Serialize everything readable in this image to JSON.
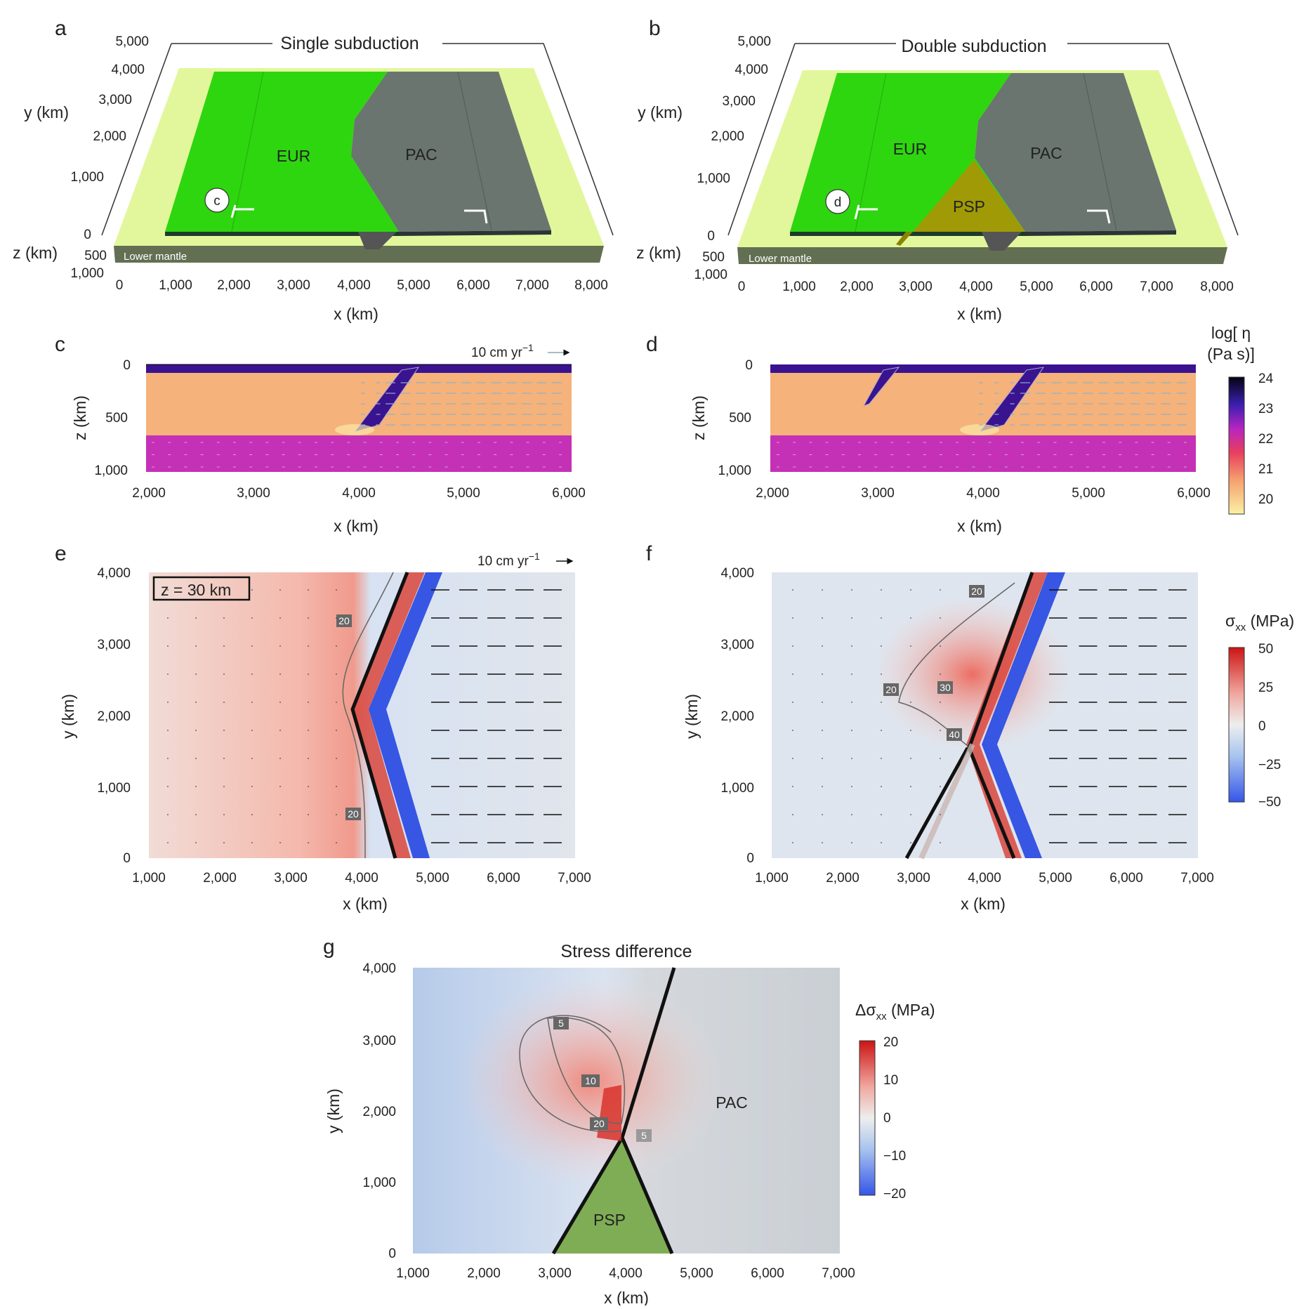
{
  "panels": {
    "a": {
      "letter": "a",
      "title": "Single subduction",
      "ylabel": "y (km)",
      "zlabel": "z (km)",
      "xlabel": "x (km)",
      "yticks": [
        "5,000",
        "4,000",
        "3,000",
        "2,000",
        "1,000",
        "0"
      ],
      "zticks": [
        "500",
        "1,000"
      ],
      "xticks": [
        "0",
        "1,000",
        "2,000",
        "3,000",
        "4,000",
        "5,000",
        "6,000",
        "7,000",
        "8,000"
      ],
      "plates": [
        "EUR",
        "PAC"
      ],
      "section_marker": "c",
      "lower": "Lower mantle"
    },
    "b": {
      "letter": "b",
      "title": "Double subduction",
      "ylabel": "y (km)",
      "zlabel": "z (km)",
      "xlabel": "x (km)",
      "yticks": [
        "5,000",
        "4,000",
        "3,000",
        "2,000",
        "1,000",
        "0"
      ],
      "zticks": [
        "500",
        "1,000"
      ],
      "xticks": [
        "0",
        "1,000",
        "2,000",
        "3,000",
        "4,000",
        "5,000",
        "6,000",
        "7,000",
        "8,000"
      ],
      "plates": [
        "EUR",
        "PAC",
        "PSP"
      ],
      "section_marker": "d",
      "lower": "Lower mantle"
    },
    "c": {
      "letter": "c",
      "ylabel": "z (km)",
      "xlabel": "x (km)",
      "yticks": [
        "0",
        "500",
        "1,000"
      ],
      "xticks": [
        "2,000",
        "3,000",
        "4,000",
        "5,000",
        "6,000"
      ],
      "scale": "10 cm yr",
      "scale_exp": "−1"
    },
    "d": {
      "letter": "d",
      "ylabel": "z (km)",
      "xlabel": "x (km)",
      "yticks": [
        "0",
        "500",
        "1,000"
      ],
      "xticks": [
        "2,000",
        "3,000",
        "4,000",
        "5,000",
        "6,000"
      ]
    },
    "e": {
      "letter": "e",
      "ylabel": "y (km)",
      "xlabel": "x (km)",
      "yticks": [
        "4,000",
        "3,000",
        "2,000",
        "1,000",
        "0"
      ],
      "xticks": [
        "1,000",
        "2,000",
        "3,000",
        "4,000",
        "5,000",
        "6,000",
        "7,000"
      ],
      "scale": "10 cm yr",
      "scale_exp": "−1",
      "depth": "z = 30 km",
      "contours": [
        "20",
        "20"
      ]
    },
    "f": {
      "letter": "f",
      "ylabel": "y (km)",
      "xlabel": "x (km)",
      "yticks": [
        "4,000",
        "3,000",
        "2,000",
        "1,000",
        "0"
      ],
      "xticks": [
        "1,000",
        "2,000",
        "3,000",
        "4,000",
        "5,000",
        "6,000",
        "7,000"
      ],
      "contours": [
        "20",
        "20",
        "30",
        "40"
      ]
    },
    "g": {
      "letter": "g",
      "title": "Stress difference",
      "ylabel": "y (km)",
      "xlabel": "x (km)",
      "yticks": [
        "4,000",
        "3,000",
        "2,000",
        "1,000",
        "0"
      ],
      "xticks": [
        "1,000",
        "2,000",
        "3,000",
        "4,000",
        "5,000",
        "6,000",
        "7,000"
      ],
      "plates": [
        "PAC",
        "PSP"
      ],
      "contours": [
        "5",
        "10",
        "20",
        "5"
      ]
    }
  },
  "colorbars": {
    "viscosity": {
      "title1": "log[ η",
      "title2": "(Pa s)]",
      "ticks": [
        "24",
        "23",
        "22",
        "21",
        "20"
      ]
    },
    "stress": {
      "title": "σ",
      "sub": "xx",
      "unit": " (MPa)",
      "ticks": [
        "50",
        "25",
        "0",
        "−25",
        "−50"
      ]
    },
    "diff": {
      "title": "Δσ",
      "sub": "xx",
      "unit": " (MPa)",
      "ticks": [
        "20",
        "10",
        "0",
        "−10",
        "−20"
      ]
    }
  },
  "colors": {
    "eur": "#2ed60f",
    "pac": "#6a7570",
    "psp": "#a09a06",
    "base": "#e2f79c",
    "lower": "#636f52",
    "upper_mantle": "#f5b27b",
    "lower_mantle": "#c431b6",
    "slab": "#3a1390"
  }
}
